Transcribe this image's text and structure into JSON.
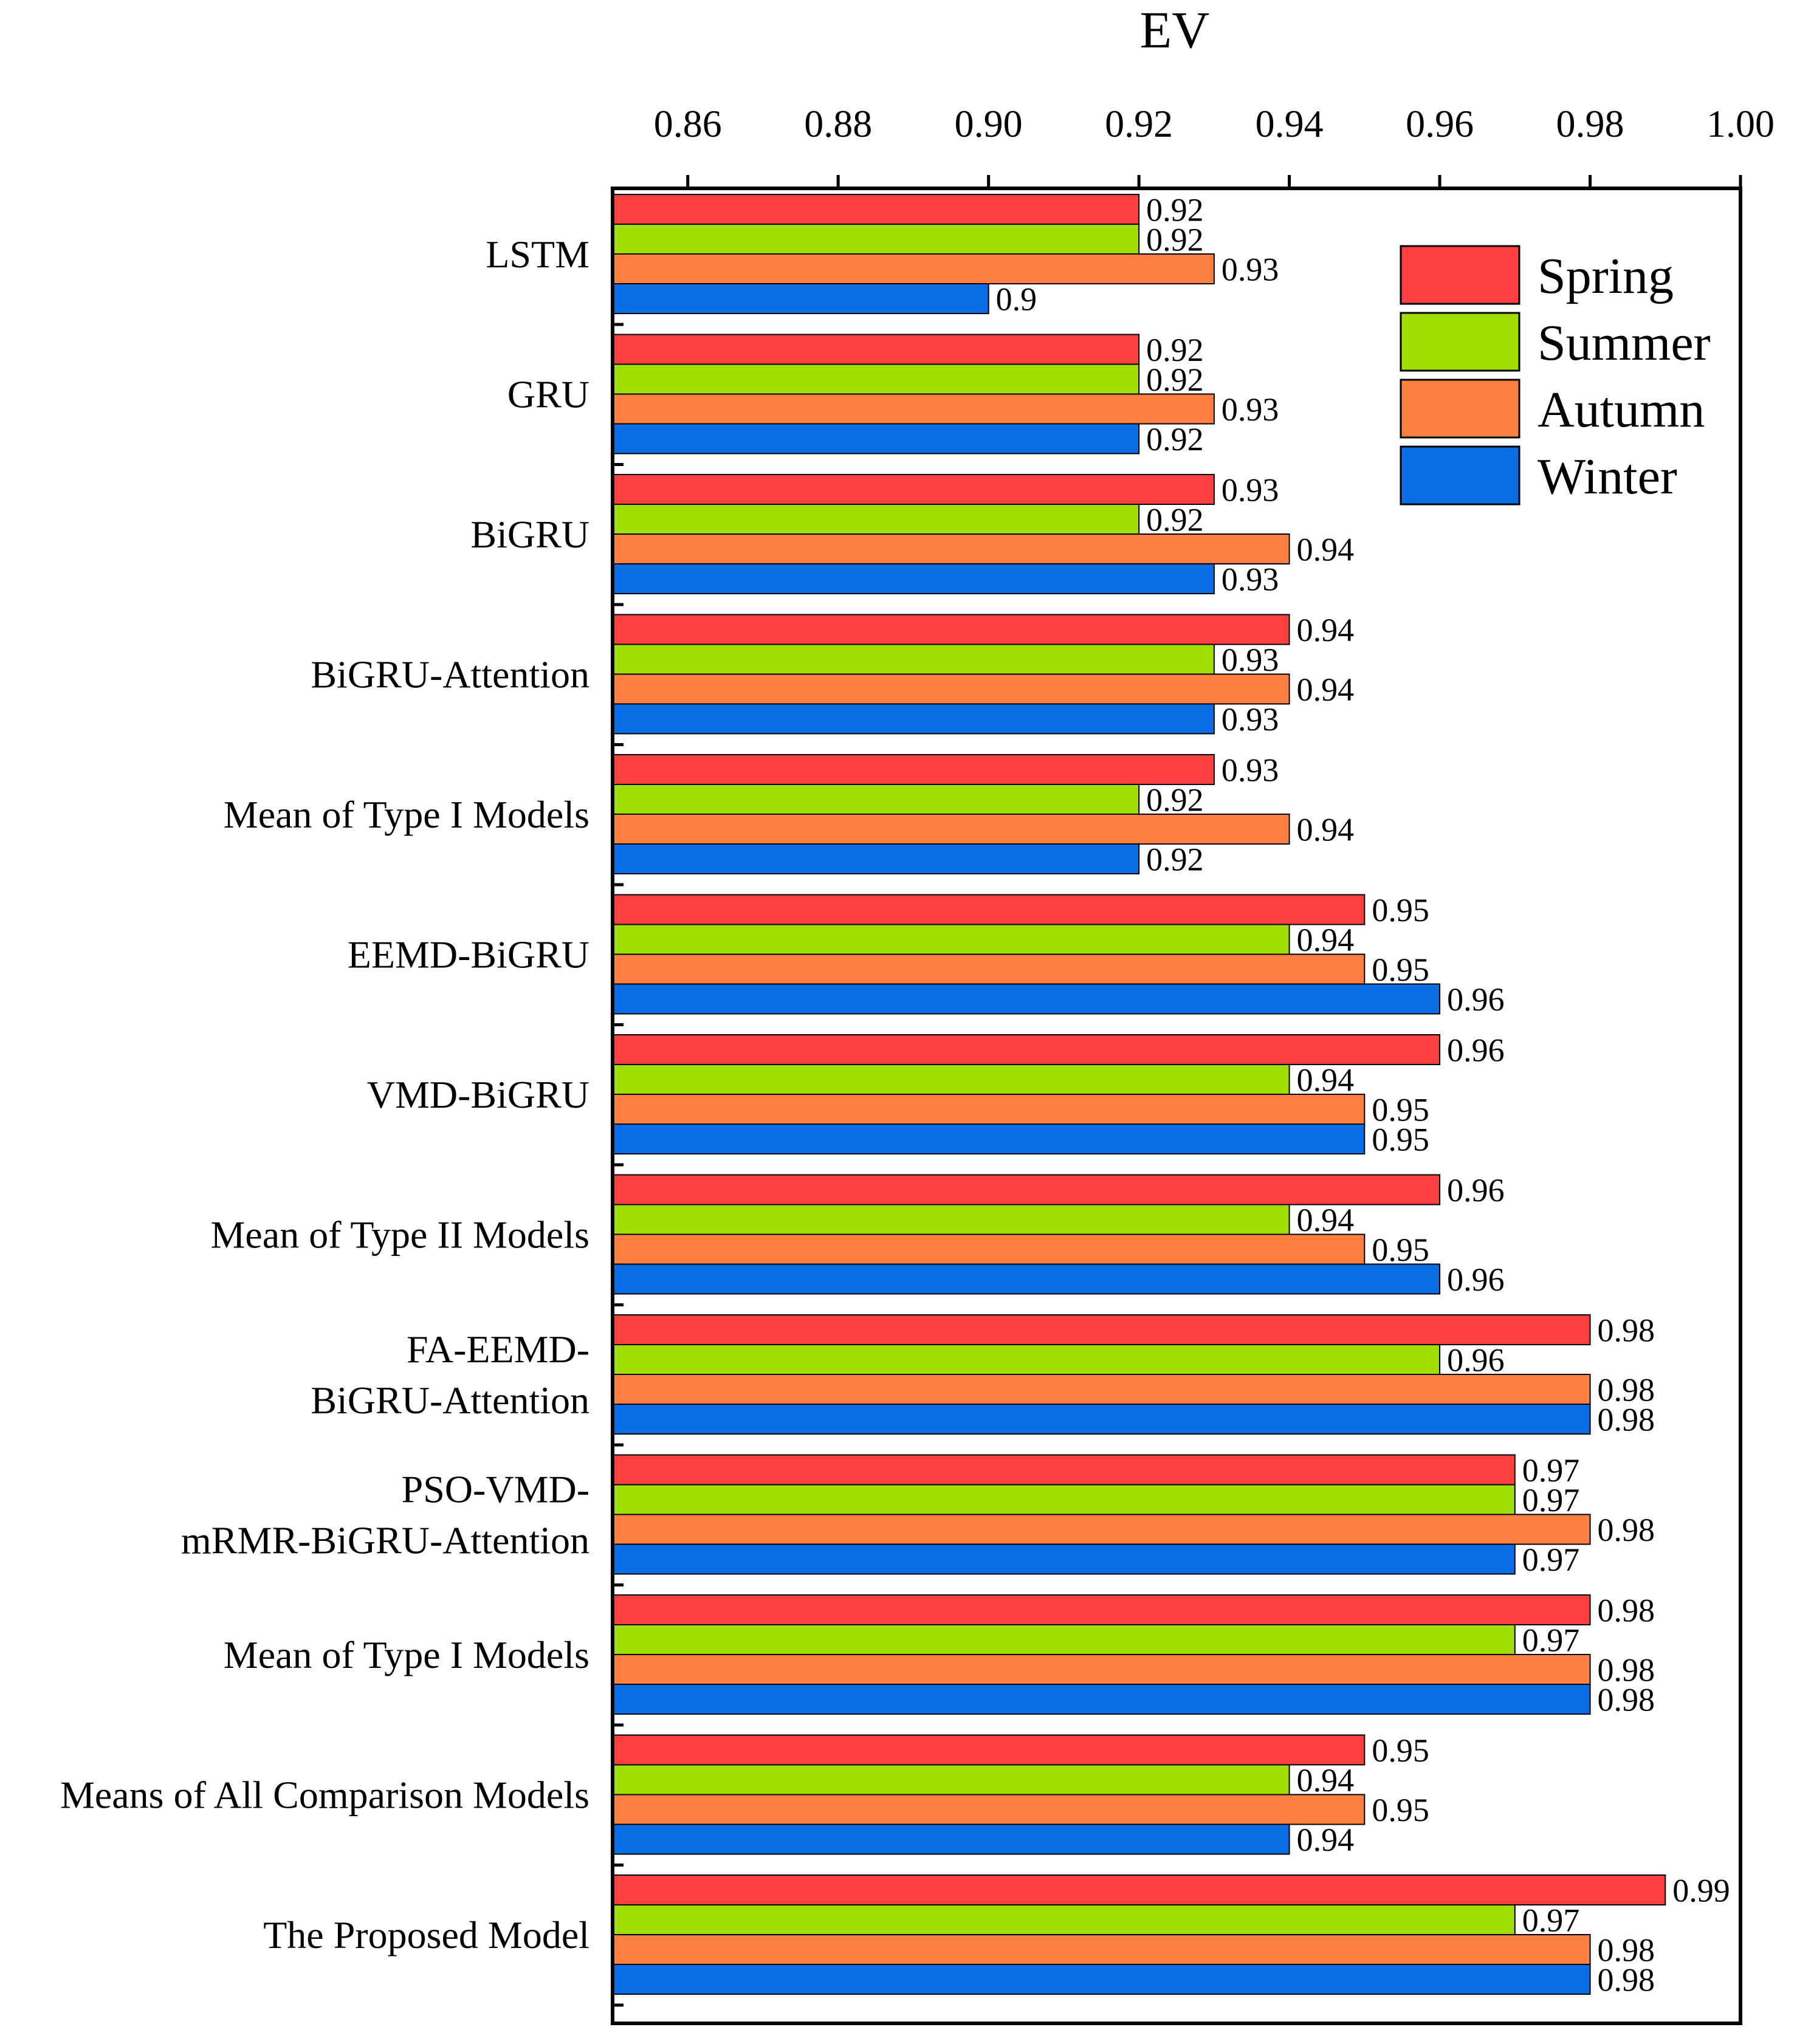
{
  "chart_data": {
    "type": "bar",
    "orientation": "horizontal",
    "title": "EV",
    "xlabel": "EV",
    "ylabel": "",
    "xlim": [
      0.85,
      1.0
    ],
    "x_ticks": [
      "0.86",
      "0.88",
      "0.90",
      "0.92",
      "0.94",
      "0.96",
      "0.98",
      "1.00"
    ],
    "categories": [
      "LSTM",
      "GRU",
      "BiGRU",
      "BiGRU-Attention",
      "Mean of Type I Models",
      "EEMD-BiGRU",
      "VMD-BiGRU",
      "Mean of Type II Models",
      "FA-EEMD-\nBiGRU-Attention",
      "PSO-VMD-\nmRMR-BiGRU-Attention",
      "Mean of Type I Models",
      "Means of All Comparison Models",
      "The Proposed Model"
    ],
    "series": [
      {
        "name": "Spring",
        "color": "#FF4040",
        "values": [
          0.92,
          0.92,
          0.93,
          0.94,
          0.93,
          0.95,
          0.96,
          0.96,
          0.98,
          0.97,
          0.98,
          0.95,
          0.99
        ],
        "labels": [
          "0.92",
          "0.92",
          "0.93",
          "0.94",
          "0.93",
          "0.95",
          "0.96",
          "0.96",
          "0.98",
          "0.97",
          "0.98",
          "0.95",
          "0.99"
        ]
      },
      {
        "name": "Summer",
        "color": "#A0E000",
        "values": [
          0.92,
          0.92,
          0.92,
          0.93,
          0.92,
          0.94,
          0.94,
          0.94,
          0.96,
          0.97,
          0.97,
          0.94,
          0.97
        ],
        "labels": [
          "0.92",
          "0.92",
          "0.92",
          "0.93",
          "0.92",
          "0.94",
          "0.94",
          "0.94",
          "0.96",
          "0.97",
          "0.97",
          "0.94",
          "0.97"
        ]
      },
      {
        "name": "Autumn",
        "color": "#FF8040",
        "values": [
          0.93,
          0.93,
          0.94,
          0.94,
          0.94,
          0.95,
          0.95,
          0.95,
          0.98,
          0.98,
          0.98,
          0.95,
          0.98
        ],
        "labels": [
          "0.93",
          "0.93",
          "0.94",
          "0.94",
          "0.94",
          "0.95",
          "0.95",
          "0.95",
          "0.98",
          "0.98",
          "0.98",
          "0.95",
          "0.98"
        ]
      },
      {
        "name": "Winter",
        "color": "#0A6EE6",
        "values": [
          0.9,
          0.92,
          0.93,
          0.93,
          0.92,
          0.96,
          0.95,
          0.96,
          0.98,
          0.97,
          0.98,
          0.94,
          0.98
        ],
        "labels": [
          "0.9",
          "0.92",
          "0.93",
          "0.93",
          "0.92",
          "0.96",
          "0.95",
          "0.96",
          "0.98",
          "0.97",
          "0.98",
          "0.94",
          "0.98"
        ]
      }
    ],
    "legend": {
      "position": "top-right",
      "entries": [
        "Spring",
        "Summer",
        "Autumn",
        "Winter"
      ]
    },
    "grid": false
  }
}
